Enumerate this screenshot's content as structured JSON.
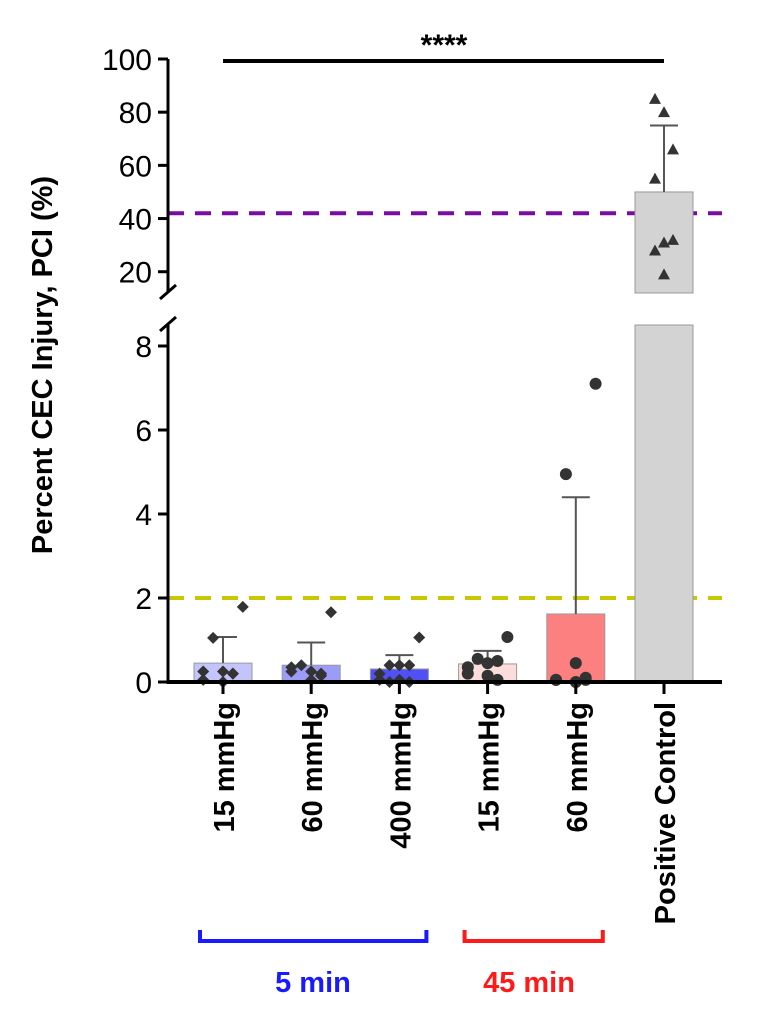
{
  "chart_data": {
    "type": "bar",
    "ylabel": "Percent CEC Injury, PCI (%)",
    "y_axis_broken": true,
    "lower_ylim": [
      0,
      8.5
    ],
    "lower_ticks": [
      "0",
      "2",
      "4",
      "6",
      "8"
    ],
    "upper_ylim": [
      12,
      100
    ],
    "upper_ticks": [
      "20",
      "40",
      "60",
      "80",
      "100"
    ],
    "categories": [
      "15 mmHg",
      "60 mmHg",
      "400 mmHg",
      "15 mmHg",
      "60 mmHg",
      "Positive Control"
    ],
    "bars": [
      {
        "mean": 0.45,
        "sd_upper": 1.07,
        "color": "#c4c4fc",
        "marker": "diamond",
        "points": [
          1.79,
          1.05,
          0.25,
          0.2,
          0.25,
          0.05,
          0.2,
          0.0
        ]
      },
      {
        "mean": 0.4,
        "sd_upper": 0.94,
        "color": "#9b9bf8",
        "marker": "diamond",
        "points": [
          1.66,
          0.4,
          0.25,
          0.2,
          0.25,
          0.35,
          0.15,
          0.05
        ]
      },
      {
        "mean": 0.31,
        "sd_upper": 0.64,
        "color": "#5050f4",
        "marker": "diamond",
        "points": [
          1.06,
          0.4,
          0.4,
          0.4,
          0.2,
          0.05,
          0.0,
          0.05,
          0.0
        ]
      },
      {
        "mean": 0.43,
        "sd_upper": 0.74,
        "color": "#fddcdc",
        "marker": "circle",
        "points": [
          1.07,
          0.55,
          0.45,
          0.5,
          0.35,
          0.2,
          0.05,
          0.15
        ]
      },
      {
        "mean": 1.62,
        "sd_upper": 4.4,
        "color": "#fd8080",
        "marker": "circle",
        "points": [
          7.1,
          4.95,
          0.45,
          0.05,
          0.05,
          0.05,
          0.1,
          0.0
        ]
      },
      {
        "mean": 50,
        "sd_upper": 75,
        "color": "#d3d3d3",
        "marker": "triangle",
        "points": [
          85,
          80,
          66,
          55,
          31,
          32,
          28,
          19
        ]
      }
    ],
    "reference_lines": [
      {
        "value": 42,
        "color": "#7a0ca0",
        "panel": "upper"
      },
      {
        "value": 2,
        "color": "#c8c800",
        "panel": "lower"
      }
    ],
    "significance": {
      "label": "****",
      "from": "15 mmHg",
      "to": "Positive Control"
    },
    "groups": [
      {
        "label": "5 min",
        "color": "#1a1aff"
      },
      {
        "label": "45 min",
        "color": "#ff1a1a"
      }
    ]
  }
}
